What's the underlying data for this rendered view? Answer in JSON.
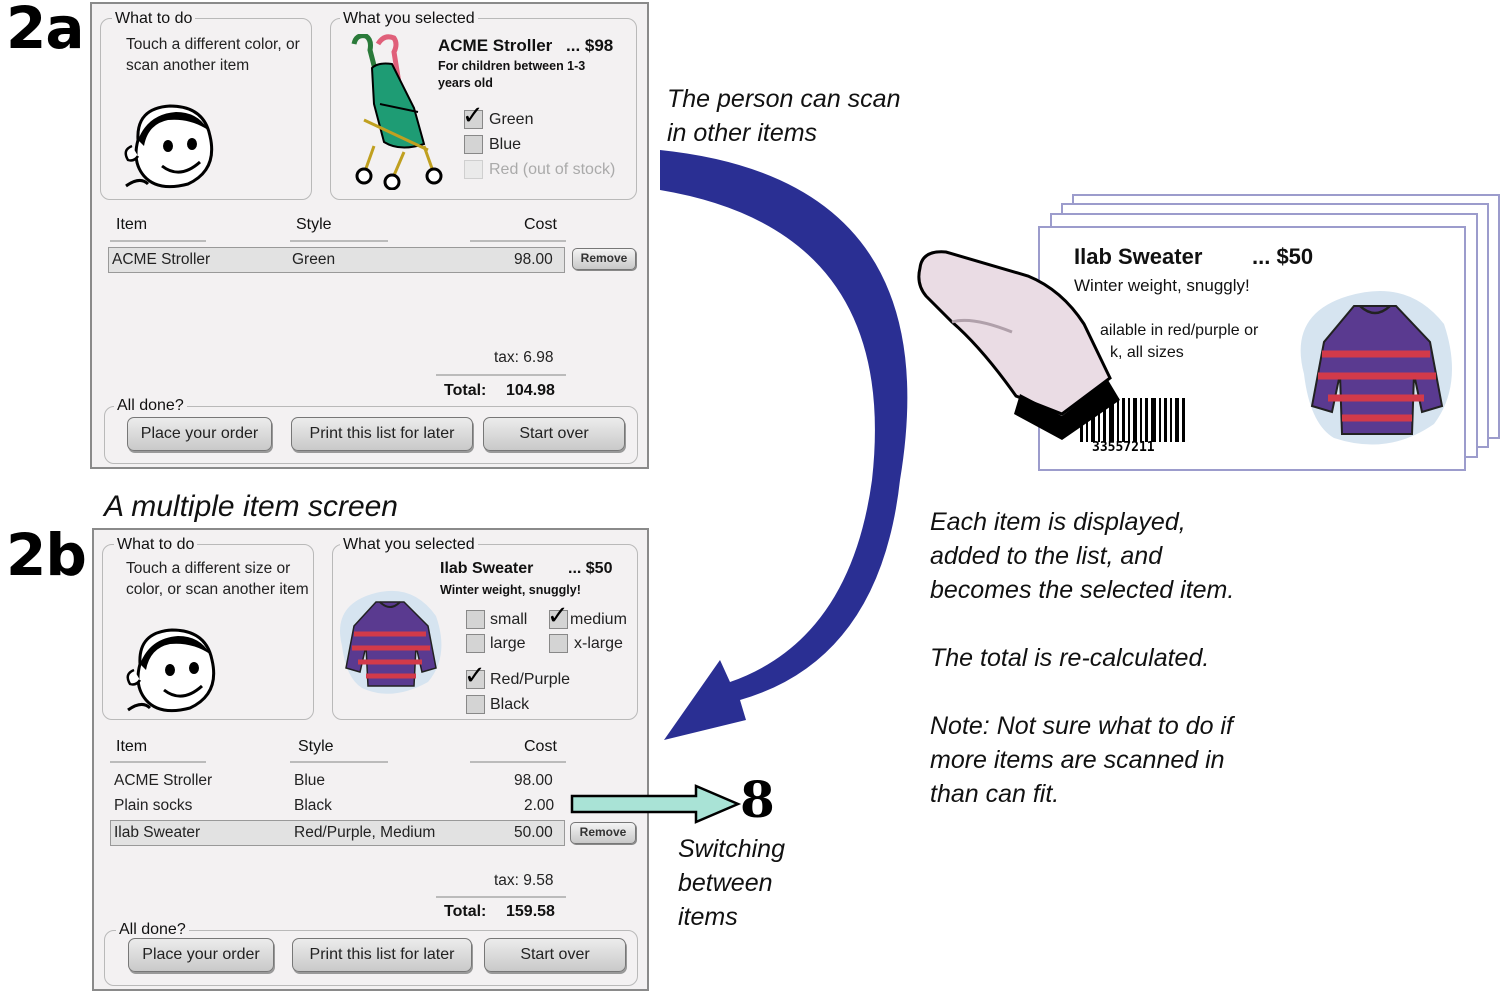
{
  "labels": {
    "a": "2a",
    "b": "2b"
  },
  "screen_a": {
    "what_to_do": {
      "title": "What to do",
      "text": "Touch a different color, or scan another item"
    },
    "selected": {
      "title": "What you selected",
      "name": "ACME Stroller",
      "price": "... $98",
      "desc": "For children between 1-3 years old",
      "options": [
        {
          "label": "Green",
          "checked": true
        },
        {
          "label": "Blue",
          "checked": false
        },
        {
          "label": "Red (out of stock)",
          "checked": false,
          "disabled": true
        }
      ]
    },
    "columns": {
      "item": "Item",
      "style": "Style",
      "cost": "Cost"
    },
    "rows": [
      {
        "item": "ACME Stroller",
        "style": "Green",
        "cost": "98.00",
        "selected": true
      }
    ],
    "remove_label": "Remove",
    "tax": "tax: 6.98",
    "total_label": "Total:",
    "total_value": "104.98",
    "all_done": "All done?",
    "buttons": {
      "place": "Place your order",
      "print": "Print this list for later",
      "start": "Start over"
    }
  },
  "screen_b": {
    "heading": "A multiple item screen",
    "what_to_do": {
      "title": "What to do",
      "text": "Touch a different size or color, or scan another item"
    },
    "selected": {
      "title": "What you selected",
      "name": "Ilab Sweater",
      "price": "... $50",
      "desc": "Winter weight, snuggly!",
      "sizes": [
        {
          "label": "small",
          "checked": false
        },
        {
          "label": "medium",
          "checked": true
        },
        {
          "label": "large",
          "checked": false
        },
        {
          "label": "x-large",
          "checked": false
        }
      ],
      "colors": [
        {
          "label": "Red/Purple",
          "checked": true
        },
        {
          "label": "Black",
          "checked": false
        }
      ]
    },
    "columns": {
      "item": "Item",
      "style": "Style",
      "cost": "Cost"
    },
    "rows": [
      {
        "item": "ACME Stroller",
        "style": "Blue",
        "cost": "98.00"
      },
      {
        "item": "Plain socks",
        "style": "Black",
        "cost": "2.00"
      },
      {
        "item": "Ilab Sweater",
        "style": "Red/Purple, Medium",
        "cost": "50.00",
        "selected": true
      }
    ],
    "remove_label": "Remove",
    "tax": "tax: 9.58",
    "total_label": "Total:",
    "total_value": "159.58",
    "all_done": "All done?",
    "buttons": {
      "place": "Place your order",
      "print": "Print this list for later",
      "start": "Start over"
    }
  },
  "annotations": {
    "scan_note": [
      "The person can scan",
      "in other items"
    ],
    "display_note": [
      "Each item is displayed,",
      "added to the list, and",
      "becomes the selected item."
    ],
    "total_note": "The total is re-calculated.",
    "fit_note": [
      "Note: Not sure what to do if",
      "more items are scanned in",
      "than can fit."
    ],
    "jump_number": "8",
    "jump_label": [
      "Switching",
      "between",
      "items"
    ]
  },
  "tag_card": {
    "name": "Ilab Sweater",
    "price": "... $50",
    "desc": "Winter weight, snuggly!",
    "avail": [
      "ailable in red/purple or",
      "k, all sizes"
    ],
    "barcode": "33557211"
  },
  "colors": {
    "arrow": "#2a2f93",
    "jump_arrow": "#a9e3d6",
    "panel_bg": "#f3f1f2",
    "card_border": "#9c9ccc"
  }
}
